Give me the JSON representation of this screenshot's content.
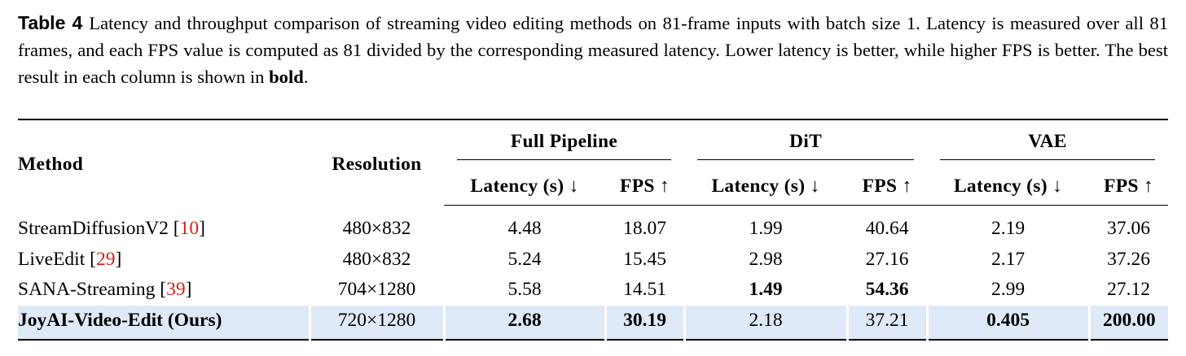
{
  "caption": {
    "label": "Table 4",
    "text": "Latency and throughput comparison of streaming video editing methods on 81-frame inputs with batch size 1. Latency is measured over all 81 frames, and each FPS value is computed as 81 divided by the corresponding measured latency. Lower latency is better, while higher FPS is better. The best result in each column is shown in ",
    "emphasis": "bold",
    "end": "."
  },
  "table": {
    "header": {
      "method": "Method",
      "resolution": "Resolution",
      "groups": [
        "Full Pipeline",
        "DiT",
        "VAE"
      ],
      "subheaders": [
        "Latency (s) ↓",
        "FPS ↑",
        "Latency (s) ↓",
        "FPS ↑",
        "Latency (s) ↓",
        "FPS ↑"
      ]
    },
    "rows": [
      {
        "method": "StreamDiffusionV2 [",
        "citation": "10",
        "method_end": "]",
        "resolution": "480×832",
        "cells": [
          "4.48",
          "18.07",
          "1.99",
          "40.64",
          "2.19",
          "37.06"
        ],
        "bold": [
          false,
          false,
          false,
          false,
          false,
          false
        ]
      },
      {
        "method": "LiveEdit [",
        "citation": "29",
        "method_end": "]",
        "resolution": "480×832",
        "cells": [
          "5.24",
          "15.45",
          "2.98",
          "27.16",
          "2.17",
          "37.26"
        ],
        "bold": [
          false,
          false,
          false,
          false,
          false,
          false
        ]
      },
      {
        "method": "SANA-Streaming [",
        "citation": "39",
        "method_end": "]",
        "resolution": "704×1280",
        "cells": [
          "5.58",
          "14.51",
          "1.49",
          "54.36",
          "2.99",
          "27.12"
        ],
        "bold": [
          false,
          false,
          true,
          true,
          false,
          false
        ]
      },
      {
        "method": "JoyAI-Video-Edit (Ours)",
        "method_bold": true,
        "highlight": true,
        "resolution": "720×1280",
        "cells": [
          "2.68",
          "30.19",
          "2.18",
          "37.21",
          "0.405",
          "200.00"
        ],
        "bold": [
          true,
          true,
          false,
          false,
          true,
          true
        ]
      }
    ]
  }
}
